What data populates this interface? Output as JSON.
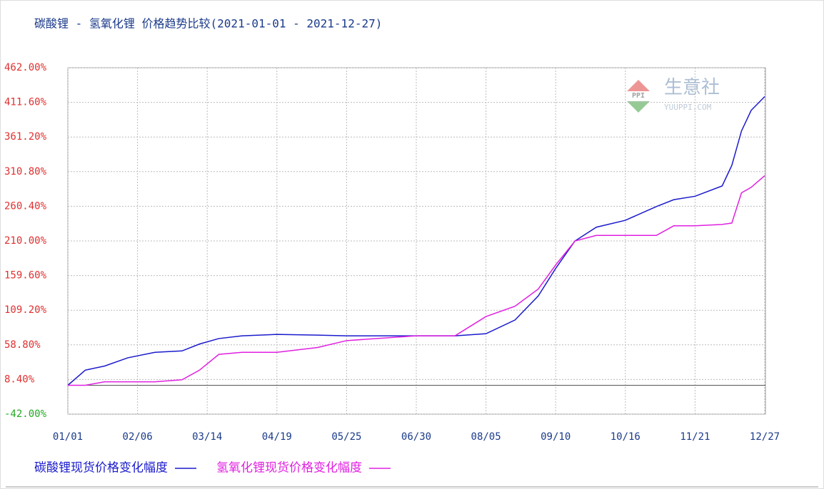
{
  "chart_data": {
    "type": "line",
    "title": "碳酸锂 - 氢氧化锂 价格趋势比较(2021-01-01 - 2021-12-27)",
    "watermark": {
      "logo": "PPI",
      "name": "生意社",
      "site": "YUUPPI.COM"
    },
    "x": [
      "01/01",
      "01/10",
      "01/20",
      "02/01",
      "02/15",
      "03/01",
      "03/10",
      "03/20",
      "04/01",
      "04/19",
      "05/10",
      "05/25",
      "06/30",
      "07/20",
      "08/05",
      "08/20",
      "09/01",
      "09/10",
      "09/20",
      "10/01",
      "10/16",
      "11/01",
      "11/10",
      "11/21",
      "12/05",
      "12/10",
      "12/15",
      "12/20",
      "12/27"
    ],
    "xlim": [
      "01/01",
      "12/27"
    ],
    "xticks": [
      "01/01",
      "02/06",
      "03/14",
      "04/19",
      "05/25",
      "06/30",
      "08/05",
      "09/10",
      "10/16",
      "11/21",
      "12/27"
    ],
    "ylim": [
      -42,
      462
    ],
    "yticks": [
      {
        "value": 462,
        "label": "462.00%"
      },
      {
        "value": 411.6,
        "label": "411.60%"
      },
      {
        "value": 361.2,
        "label": "361.20%"
      },
      {
        "value": 310.8,
        "label": "310.80%"
      },
      {
        "value": 260.4,
        "label": "260.40%"
      },
      {
        "value": 210,
        "label": "210.00%"
      },
      {
        "value": 159.6,
        "label": "159.60%"
      },
      {
        "value": 109.2,
        "label": "109.20%"
      },
      {
        "value": 58.8,
        "label": "58.80%"
      },
      {
        "value": 8.4,
        "label": "8.40%"
      },
      {
        "value": -42,
        "label": "-42.00%"
      }
    ],
    "grid": true,
    "series": [
      {
        "name": "碳酸锂现货价格变化幅度",
        "color": "#1a1acc",
        "values": [
          0,
          22,
          28,
          40,
          48,
          50,
          60,
          68,
          72,
          74,
          73,
          72,
          72,
          72,
          75,
          95,
          130,
          170,
          210,
          230,
          240,
          260,
          270,
          275,
          290,
          320,
          370,
          400,
          420
        ]
      },
      {
        "name": "氢氧化锂现货价格变化幅度",
        "color": "#e020e0",
        "values": [
          0,
          0,
          5,
          5,
          5,
          8,
          22,
          45,
          48,
          48,
          55,
          65,
          72,
          72,
          100,
          115,
          140,
          175,
          210,
          218,
          218,
          218,
          232,
          232,
          234,
          236,
          280,
          288,
          305
        ]
      }
    ]
  }
}
